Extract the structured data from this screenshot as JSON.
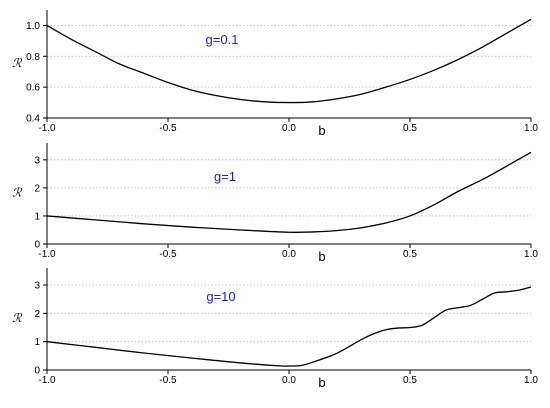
{
  "chart_data": [
    {
      "type": "line",
      "annotation": "g=0.1",
      "xlabel": "b",
      "ylabel": "ℛ",
      "xlim": [
        -1.0,
        1.0
      ],
      "ylim": [
        0.4,
        1.1
      ],
      "xticks": [
        "-1.0",
        "-0.5",
        "0.0",
        "0.5",
        "1.0"
      ],
      "xtick_values": [
        -1.0,
        -0.5,
        0.0,
        0.5,
        1.0
      ],
      "yticks": [
        "0.4",
        "0.6",
        "0.8",
        "1.0"
      ],
      "ytick_values": [
        0.4,
        0.6,
        0.8,
        1.0
      ],
      "grid": "horizontal dotted",
      "series": [
        {
          "x": [
            -1.0,
            -0.9,
            -0.8,
            -0.7,
            -0.6,
            -0.5,
            -0.4,
            -0.3,
            -0.2,
            -0.1,
            0.0,
            0.1,
            0.2,
            0.3,
            0.4,
            0.5,
            0.6,
            0.7,
            0.8,
            0.9,
            1.0
          ],
          "y": [
            1.0,
            0.91,
            0.83,
            0.75,
            0.69,
            0.63,
            0.58,
            0.545,
            0.52,
            0.505,
            0.5,
            0.505,
            0.525,
            0.555,
            0.6,
            0.65,
            0.71,
            0.78,
            0.86,
            0.95,
            1.04
          ]
        }
      ]
    },
    {
      "type": "line",
      "annotation": "g=1",
      "xlabel": "b",
      "ylabel": "ℛ",
      "xlim": [
        -1.0,
        1.0
      ],
      "ylim": [
        0,
        3.6
      ],
      "xticks": [
        "-1.0",
        "-0.5",
        "0.0",
        "0.5",
        "1.0"
      ],
      "xtick_values": [
        -1.0,
        -0.5,
        0.0,
        0.5,
        1.0
      ],
      "yticks": [
        "0",
        "1",
        "2",
        "3"
      ],
      "ytick_values": [
        0,
        1,
        2,
        3
      ],
      "grid": "horizontal dotted",
      "series": [
        {
          "x": [
            -1.0,
            -0.8,
            -0.6,
            -0.4,
            -0.2,
            0.0,
            0.1,
            0.2,
            0.3,
            0.4,
            0.5,
            0.6,
            0.7,
            0.8,
            0.9,
            1.0
          ],
          "y": [
            1.0,
            0.86,
            0.72,
            0.6,
            0.5,
            0.42,
            0.43,
            0.48,
            0.58,
            0.75,
            1.0,
            1.4,
            1.88,
            2.3,
            2.78,
            3.27
          ]
        }
      ]
    },
    {
      "type": "line",
      "annotation": "g=10",
      "xlabel": "b",
      "ylabel": "ℛ",
      "xlim": [
        -1.0,
        1.0
      ],
      "ylim": [
        0,
        3.6
      ],
      "xticks": [
        "-1.0",
        "-0.5",
        "0.0",
        "0.5",
        "1.0"
      ],
      "xtick_values": [
        -1.0,
        -0.5,
        0.0,
        0.5,
        1.0
      ],
      "yticks": [
        "0",
        "1",
        "2",
        "3"
      ],
      "ytick_values": [
        0,
        1,
        2,
        3
      ],
      "grid": "horizontal dotted",
      "series": [
        {
          "x": [
            -1.0,
            -0.8,
            -0.6,
            -0.4,
            -0.2,
            -0.05,
            0.0,
            0.05,
            0.1,
            0.2,
            0.3,
            0.35,
            0.4,
            0.45,
            0.5,
            0.55,
            0.6,
            0.65,
            0.7,
            0.75,
            0.8,
            0.85,
            0.9,
            0.95,
            1.0
          ],
          "y": [
            1.0,
            0.8,
            0.6,
            0.42,
            0.25,
            0.15,
            0.14,
            0.16,
            0.28,
            0.6,
            1.08,
            1.28,
            1.42,
            1.48,
            1.5,
            1.58,
            1.85,
            2.12,
            2.2,
            2.28,
            2.5,
            2.72,
            2.76,
            2.82,
            2.93
          ]
        }
      ]
    }
  ],
  "colors": {
    "annotation": "#1a1aee",
    "line": "#000000",
    "grid": "#b8b8b8"
  }
}
